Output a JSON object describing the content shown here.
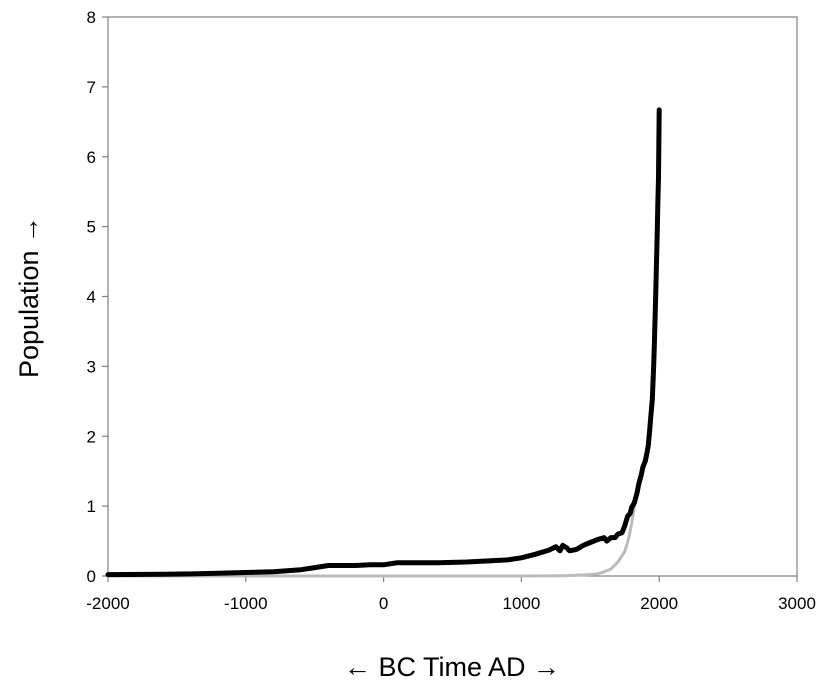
{
  "chart_data": {
    "type": "line",
    "title": "",
    "xlabel": "← BC Time AD →",
    "ylabel": "Population →",
    "xlim": [
      -2000,
      3000
    ],
    "ylim": [
      0,
      8
    ],
    "x_ticks": [
      -2000,
      -1000,
      0,
      1000,
      2000,
      3000
    ],
    "y_ticks": [
      0,
      1,
      2,
      3,
      4,
      5,
      6,
      7,
      8
    ],
    "x_tick_labels": [
      "-2000",
      "-1000",
      "0",
      "1000",
      "2000",
      "3000"
    ],
    "y_tick_labels": [
      "0",
      "1",
      "2",
      "3",
      "4",
      "5",
      "6",
      "7",
      "8"
    ],
    "grid": false,
    "legend": "none",
    "series": [
      {
        "color": "#000000",
        "x": [
          -2000,
          -1600,
          -1400,
          -1200,
          -1000,
          -800,
          -600,
          -500,
          -400,
          -300,
          -200,
          -100,
          0,
          100,
          200,
          400,
          600,
          800,
          900,
          1000,
          1100,
          1200,
          1250,
          1280,
          1300,
          1330,
          1350,
          1400,
          1450,
          1500,
          1550,
          1600,
          1620,
          1650,
          1680,
          1700,
          1730,
          1750,
          1770,
          1790,
          1800,
          1820,
          1840,
          1850,
          1870,
          1880,
          1900,
          1910,
          1920,
          1930,
          1940,
          1950,
          1960,
          1965,
          1970,
          1975,
          1980,
          1985,
          1990,
          1995,
          2000
        ],
        "y": [
          0.02,
          0.025,
          0.03,
          0.04,
          0.05,
          0.06,
          0.09,
          0.12,
          0.15,
          0.15,
          0.15,
          0.16,
          0.16,
          0.19,
          0.19,
          0.19,
          0.2,
          0.22,
          0.23,
          0.26,
          0.31,
          0.37,
          0.42,
          0.36,
          0.44,
          0.4,
          0.36,
          0.38,
          0.44,
          0.48,
          0.52,
          0.55,
          0.5,
          0.55,
          0.55,
          0.6,
          0.62,
          0.72,
          0.85,
          0.9,
          0.98,
          1.05,
          1.2,
          1.3,
          1.45,
          1.55,
          1.65,
          1.75,
          1.86,
          2.07,
          2.3,
          2.52,
          3.02,
          3.34,
          3.7,
          4.07,
          4.44,
          4.83,
          5.31,
          5.7,
          6.67
        ]
      },
      {
        "color": "#bbbbbb",
        "x": [
          -2000,
          1000,
          1300,
          1400,
          1500,
          1550,
          1600,
          1650,
          1700,
          1750,
          1780,
          1800,
          1820,
          1840
        ],
        "y": [
          0,
          0,
          0.005,
          0.01,
          0.02,
          0.03,
          0.06,
          0.1,
          0.2,
          0.35,
          0.55,
          0.75,
          1.0,
          1.2
        ]
      }
    ]
  }
}
